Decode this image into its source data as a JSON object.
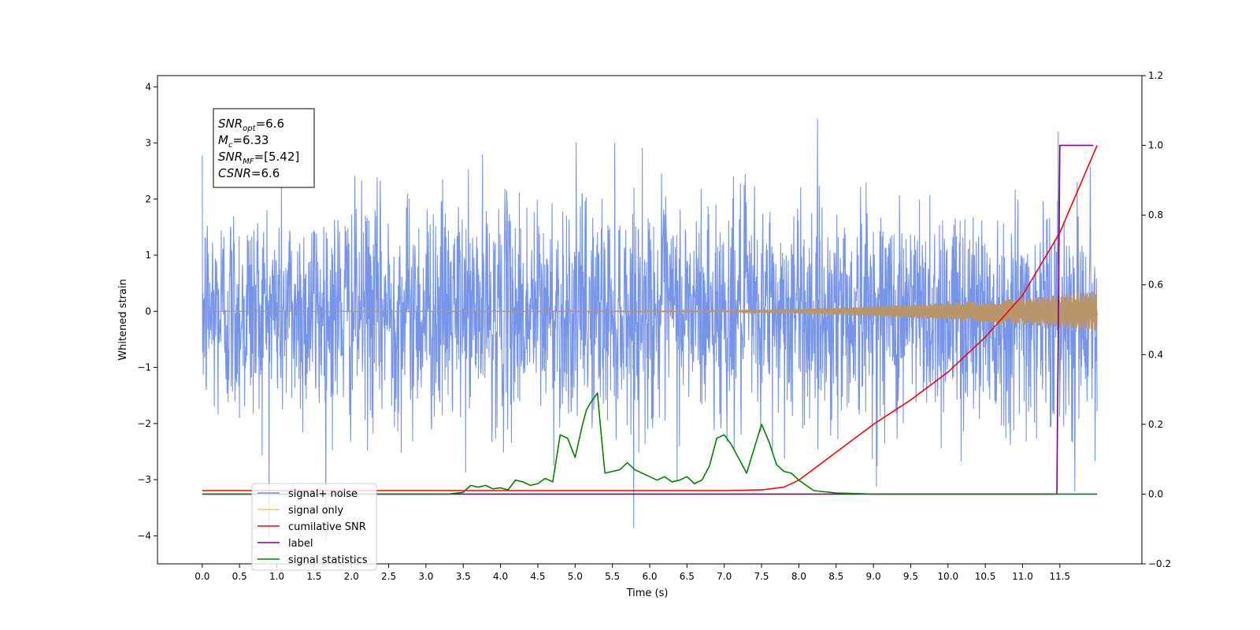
{
  "chart_data": {
    "type": "line",
    "xlabel": "Time (s)",
    "ylabel": "Whitened strain",
    "xlim": [
      -0.6,
      12.6
    ],
    "ylim": [
      -4.5,
      4.2
    ],
    "y2lim": [
      -0.2,
      1.2
    ],
    "x_ticks": [
      0.0,
      0.5,
      1.0,
      1.5,
      2.0,
      2.5,
      3.0,
      3.5,
      4.0,
      4.5,
      5.0,
      5.5,
      6.0,
      6.5,
      7.0,
      7.5,
      8.0,
      8.5,
      9.0,
      9.5,
      10.0,
      10.5,
      11.0,
      11.5
    ],
    "x_tick_labels": [
      "0.0",
      "0.5",
      "1.0",
      "1.5",
      "2.0",
      "2.5",
      "3.0",
      "3.5",
      "4.0",
      "4.5",
      "5.0",
      "5.5",
      "6.0",
      "6.5",
      "7.0",
      "7.5",
      "8.0",
      "8.5",
      "9.0",
      "9.5",
      "10.0",
      "10.5",
      "11.0",
      "11.5"
    ],
    "y_ticks": [
      -4,
      -3,
      -2,
      -1,
      0,
      1,
      2,
      3,
      4
    ],
    "y_tick_labels": [
      "−4",
      "−3",
      "−2",
      "−1",
      "0",
      "1",
      "2",
      "3",
      "4"
    ],
    "y2_ticks": [
      -0.2,
      0.0,
      0.2,
      0.4,
      0.6,
      0.8,
      1.0,
      1.2
    ],
    "y2_tick_labels": [
      "−0.2",
      "0.0",
      "0.2",
      "0.4",
      "0.6",
      "0.8",
      "1.0",
      "1.2"
    ],
    "grid": false,
    "legend_position": "lower-left",
    "annotation": [
      {
        "sym": "SNR",
        "sub": "opt",
        "val": "=6.6"
      },
      {
        "sym": "M",
        "sub": "c",
        "val": "=6.33"
      },
      {
        "sym": "SNR",
        "sub": "MF",
        "val": "=[5.42]"
      },
      {
        "sym": "CSNR",
        "sub": "",
        "val": "=6.6"
      }
    ],
    "series": [
      {
        "name": "signal+ noise",
        "axis": "left",
        "color": "#6f8ee8",
        "kind": "noise",
        "x_range": [
          0.0,
          12.0
        ],
        "envelope_typical": 1.6,
        "peak_max": 3.85,
        "trough_min": -4.1
      },
      {
        "name": "signal only",
        "axis": "left",
        "color": "#ffbf5a",
        "kind": "chirp",
        "x_range": [
          0.0,
          12.0
        ],
        "amplitude_x": [
          0.0,
          7.0,
          8.0,
          9.0,
          10.0,
          11.0,
          12.0
        ],
        "amplitude": [
          0.0,
          0.01,
          0.04,
          0.09,
          0.15,
          0.23,
          0.36
        ]
      },
      {
        "name": "cumilative SNR",
        "axis": "right",
        "color": "#ff0000",
        "kind": "line",
        "x": [
          0.0,
          7.0,
          7.5,
          7.8,
          8.0,
          8.5,
          9.0,
          9.5,
          10.0,
          10.5,
          11.0,
          11.5,
          12.0
        ],
        "y": [
          0.01,
          0.01,
          0.012,
          0.02,
          0.04,
          0.12,
          0.2,
          0.27,
          0.35,
          0.45,
          0.57,
          0.75,
          1.0
        ]
      },
      {
        "name": "label",
        "axis": "right",
        "color": "#800080",
        "kind": "line",
        "x": [
          0.0,
          11.45,
          11.46,
          11.5,
          11.95
        ],
        "y": [
          0.0,
          0.0,
          0.0,
          1.0,
          1.0
        ]
      },
      {
        "name": "signal statistics",
        "axis": "right",
        "color": "#008000",
        "kind": "line",
        "x": [
          0.0,
          3.3,
          3.5,
          3.6,
          3.7,
          3.8,
          3.9,
          4.0,
          4.1,
          4.2,
          4.3,
          4.4,
          4.5,
          4.6,
          4.7,
          4.8,
          4.9,
          5.0,
          5.1,
          5.15,
          5.2,
          5.3,
          5.35,
          5.4,
          5.5,
          5.6,
          5.7,
          5.8,
          5.9,
          6.0,
          6.1,
          6.2,
          6.3,
          6.4,
          6.5,
          6.6,
          6.7,
          6.8,
          6.9,
          7.0,
          7.1,
          7.2,
          7.3,
          7.4,
          7.5,
          7.6,
          7.7,
          7.8,
          7.9,
          8.0,
          8.1,
          8.2,
          8.5,
          9.0,
          12.0
        ],
        "y": [
          0.0,
          0.0,
          0.005,
          0.025,
          0.02,
          0.025,
          0.015,
          0.018,
          0.012,
          0.04,
          0.035,
          0.025,
          0.03,
          0.045,
          0.035,
          0.17,
          0.16,
          0.105,
          0.2,
          0.24,
          0.26,
          0.29,
          0.17,
          0.06,
          0.065,
          0.07,
          0.09,
          0.07,
          0.06,
          0.05,
          0.04,
          0.05,
          0.035,
          0.04,
          0.05,
          0.03,
          0.04,
          0.08,
          0.16,
          0.17,
          0.14,
          0.1,
          0.06,
          0.13,
          0.2,
          0.15,
          0.085,
          0.065,
          0.06,
          0.04,
          0.025,
          0.01,
          0.003,
          0.0,
          0.0
        ]
      }
    ]
  }
}
